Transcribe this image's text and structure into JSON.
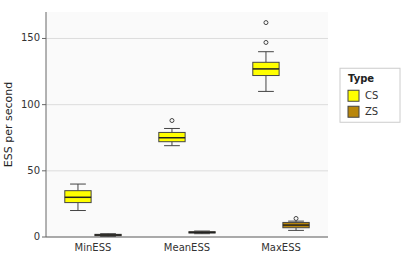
{
  "chart_data": {
    "type": "box",
    "categories": [
      "MinESS",
      "MeanESS",
      "MaxESS"
    ],
    "ylabel": "ESS per second",
    "ylim": [
      0,
      170
    ],
    "yticks": [
      0,
      50,
      100,
      150
    ],
    "grid": true,
    "legend": "right",
    "legend_title": "Type",
    "series": [
      {
        "name": "CS",
        "color": "#ffff00",
        "values": [
          {
            "q1": 26,
            "median": 30,
            "q3": 35,
            "whisker_low": 20,
            "whisker_high": 40,
            "fliers": []
          },
          {
            "q1": 72,
            "median": 75,
            "q3": 79,
            "whisker_low": 69,
            "whisker_high": 82,
            "fliers": [
              88
            ]
          },
          {
            "q1": 122,
            "median": 127,
            "q3": 132,
            "whisker_low": 110,
            "whisker_high": 140,
            "fliers": [
              147,
              162
            ]
          }
        ]
      },
      {
        "name": "ZS",
        "color": "#b8860b",
        "values": [
          {
            "q1": 1.0,
            "median": 1.5,
            "q3": 2.0,
            "whisker_low": 0.5,
            "whisker_high": 2.5,
            "fliers": []
          },
          {
            "q1": 3.0,
            "median": 3.5,
            "q3": 4.0,
            "whisker_low": 2.5,
            "whisker_high": 4.5,
            "fliers": []
          },
          {
            "q1": 7,
            "median": 9,
            "q3": 11,
            "whisker_low": 5,
            "whisker_high": 12,
            "fliers": [
              14
            ]
          }
        ]
      }
    ]
  }
}
